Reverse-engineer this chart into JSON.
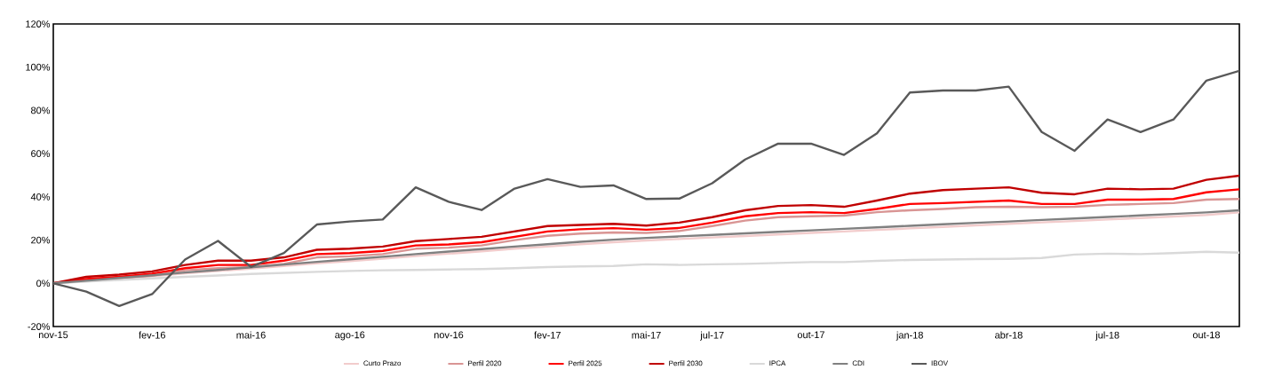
{
  "chart_data": {
    "type": "line",
    "x": [
      "2015-11",
      "2015-12",
      "2016-01",
      "2016-02",
      "2016-03",
      "2016-04",
      "2016-05",
      "2016-06",
      "2016-07",
      "2016-08",
      "2016-09",
      "2016-10",
      "2016-11",
      "2016-12",
      "2017-01",
      "2017-02",
      "2017-03",
      "2017-04",
      "2017-05",
      "2017-06",
      "2017-07",
      "2017-08",
      "2017-09",
      "2017-10",
      "2017-11",
      "2017-12",
      "2018-01",
      "2018-02",
      "2018-03",
      "2018-04",
      "2018-05",
      "2018-06",
      "2018-07",
      "2018-08",
      "2018-09",
      "2018-10",
      "2018-11"
    ],
    "xlim": [
      "2015-11",
      "2018-11"
    ],
    "xticks": [
      {
        "value": "2015-11",
        "label": "nov-15"
      },
      {
        "value": "2016-02",
        "label": "fev-16"
      },
      {
        "value": "2016-05",
        "label": "mai-16"
      },
      {
        "value": "2016-08",
        "label": "ago-16"
      },
      {
        "value": "2016-11",
        "label": "nov-16"
      },
      {
        "value": "2017-02",
        "label": "fev-17"
      },
      {
        "value": "2017-05",
        "label": "mai-17"
      },
      {
        "value": "2017-07",
        "label": "jul-17"
      },
      {
        "value": "2017-10",
        "label": "out-17"
      },
      {
        "value": "2018-01",
        "label": "jan-18"
      },
      {
        "value": "2018-04",
        "label": "abr-18"
      },
      {
        "value": "2018-07",
        "label": "jul-18"
      },
      {
        "value": "2018-10",
        "label": "out-18"
      }
    ],
    "ylim": [
      -20,
      120
    ],
    "yticks": [
      {
        "value": -20,
        "label": "-20%"
      },
      {
        "value": 0,
        "label": "0%"
      },
      {
        "value": 20,
        "label": "20%"
      },
      {
        "value": 40,
        "label": "40%"
      },
      {
        "value": 60,
        "label": "60%"
      },
      {
        "value": 80,
        "label": "80%"
      },
      {
        "value": 100,
        "label": "100%"
      },
      {
        "value": 120,
        "label": "120%"
      }
    ],
    "legend": "bottom",
    "grid": false,
    "marker": "none",
    "line_style": "solid",
    "series": [
      {
        "name": "Curto Prazo",
        "color": "#f2cccc",
        "values": [
          0,
          1.0,
          2.2,
          3.3,
          4.6,
          5.7,
          6.8,
          8.0,
          9.2,
          10.3,
          11.4,
          12.6,
          13.7,
          14.8,
          16.0,
          17.0,
          18.1,
          19.0,
          19.8,
          20.5,
          21.2,
          21.9,
          22.6,
          23.3,
          24.0,
          24.7,
          25.4,
          26.1,
          26.8,
          27.5,
          28.2,
          28.8,
          29.5,
          30.2,
          30.9,
          31.6,
          32.8
        ]
      },
      {
        "name": "Perfil 2020",
        "color": "#d99594",
        "values": [
          0,
          1.5,
          2.5,
          3.5,
          6,
          7,
          7.5,
          9,
          12,
          12.5,
          13.5,
          16,
          16.5,
          17.5,
          20,
          22,
          23,
          23.5,
          23.3,
          24.2,
          26.5,
          29,
          30.6,
          31,
          31.3,
          32.9,
          33.8,
          34.4,
          35.2,
          35.4,
          35.2,
          35.4,
          36.3,
          36.7,
          37.1,
          38.7,
          39
        ]
      },
      {
        "name": "Perfil 2025",
        "color": "#ff0000",
        "values": [
          0,
          2,
          3,
          4.5,
          7,
          8.5,
          8.5,
          10.5,
          13.5,
          14,
          15,
          17.5,
          18,
          19,
          21.5,
          24,
          25,
          25.5,
          24.8,
          25.6,
          28.1,
          31,
          32.5,
          32.9,
          32.5,
          34.4,
          36.7,
          37.1,
          37.7,
          38.3,
          36.7,
          36.7,
          38.7,
          38.7,
          39,
          42.1,
          43.5
        ]
      },
      {
        "name": "Perfil 2030",
        "color": "#c00000",
        "values": [
          0,
          3,
          4,
          5.5,
          8.5,
          10.5,
          10.5,
          12,
          15.5,
          16,
          17,
          19.5,
          20.5,
          21.5,
          24,
          26.5,
          27,
          27.5,
          26.7,
          28.1,
          30.6,
          33.8,
          35.8,
          36.2,
          35.4,
          38.3,
          41.5,
          43.1,
          43.8,
          44.4,
          41.9,
          41.2,
          43.8,
          43.5,
          43.8,
          47.9,
          49.8
        ]
      },
      {
        "name": "IPCA",
        "color": "#d9d9d9",
        "values": [
          0,
          0.8,
          1.5,
          2.3,
          3.0,
          3.6,
          4.3,
          4.8,
          5.3,
          5.7,
          6.0,
          6.2,
          6.4,
          6.6,
          7.0,
          7.5,
          7.8,
          8.0,
          8.8,
          8.5,
          8.8,
          9.0,
          9.4,
          9.8,
          9.8,
          10.4,
          10.8,
          11.0,
          11.2,
          11.3,
          11.7,
          13.3,
          13.7,
          13.5,
          14.0,
          14.6,
          14.2
        ]
      },
      {
        "name": "CDI",
        "color": "#808080",
        "values": [
          0,
          1.2,
          2.5,
          3.7,
          5.0,
          6.2,
          7.4,
          8.7,
          9.9,
          11.1,
          12.3,
          13.5,
          14.7,
          15.8,
          17.0,
          18.1,
          19.2,
          20.2,
          21.0,
          21.7,
          22.4,
          23.1,
          23.8,
          24.5,
          25.2,
          25.9,
          26.6,
          27.3,
          28.0,
          28.6,
          29.3,
          30.0,
          30.7,
          31.4,
          32.1,
          32.8,
          33.8
        ]
      },
      {
        "name": "IBOV",
        "color": "#595959",
        "values": [
          0,
          -3.8,
          -10.5,
          -5,
          11,
          19.6,
          7.6,
          14,
          27.2,
          28.6,
          29.5,
          44.4,
          37.7,
          33.9,
          43.8,
          48.2,
          44.6,
          45.3,
          39.0,
          39.2,
          46.3,
          57.3,
          64.6,
          64.6,
          59.4,
          69.4,
          88.3,
          89.2,
          89.2,
          91.0,
          70.0,
          61.3,
          75.8,
          70.0,
          75.8,
          93.8,
          98.3
        ]
      }
    ]
  }
}
